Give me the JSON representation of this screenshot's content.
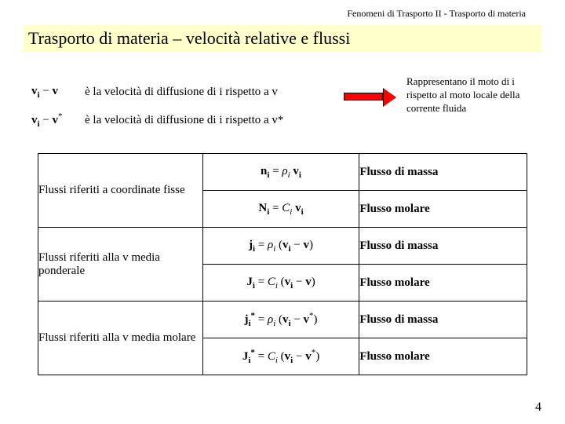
{
  "header": "Fenomeni di Trasporto II - Trasporto di materia",
  "title": "Trasporto di materia – velocità relative e flussi",
  "def1_formula": "v<sub>i</sub> − v",
  "def1_text": "è la velocità di diffusione di i rispetto a v",
  "def2_formula": "v<sub>i</sub> − v<sup>*</sup>",
  "def2_text": "è la velocità di diffusione di i rispetto a v*",
  "note": "Rappresentano il moto di i rispetto al moto locale della corrente fluida",
  "rows": [
    {
      "label": "Flussi riferiti a coordinate fisse",
      "eq1": "n<sub>i</sub> = <i>ρ</i><sub>i</sub> v<sub>i</sub>",
      "eq2": "N<sub>i</sub> = <i>C</i><sub>i</sub> v<sub>i</sub>",
      "d1": "Flusso di massa",
      "d2": "Flusso molare"
    },
    {
      "label": "Flussi riferiti alla v media ponderale",
      "eq1": "j<sub>i</sub> = <i>ρ</i><sub>i</sub> (v<sub>i</sub> − v)",
      "eq2": "J<sub>i</sub> = <i>C</i><sub>i</sub> (v<sub>i</sub> − v)",
      "d1": "Flusso di massa",
      "d2": "Flusso molare"
    },
    {
      "label": "Flussi riferiti alla v media molare",
      "eq1": "j<sub>i</sub><sup>*</sup> = <i>ρ</i><sub>i</sub> (v<sub>i</sub> − v<sup>*</sup>)",
      "eq2": "J<sub>i</sub><sup>*</sup> = <i>C</i><sub>i</sub> (v<sub>i</sub> − v<sup>*</sup>)",
      "d1": "Flusso di massa",
      "d2": "Flusso molare"
    }
  ],
  "page": "4",
  "colors": {
    "title_bg": "#ffffcc",
    "arrow_fill": "#ff0000",
    "text": "#000000",
    "background": "#ffffff"
  },
  "fonts": {
    "title_size_pt": 22,
    "body_size_pt": 15,
    "header_size_pt": 12
  }
}
